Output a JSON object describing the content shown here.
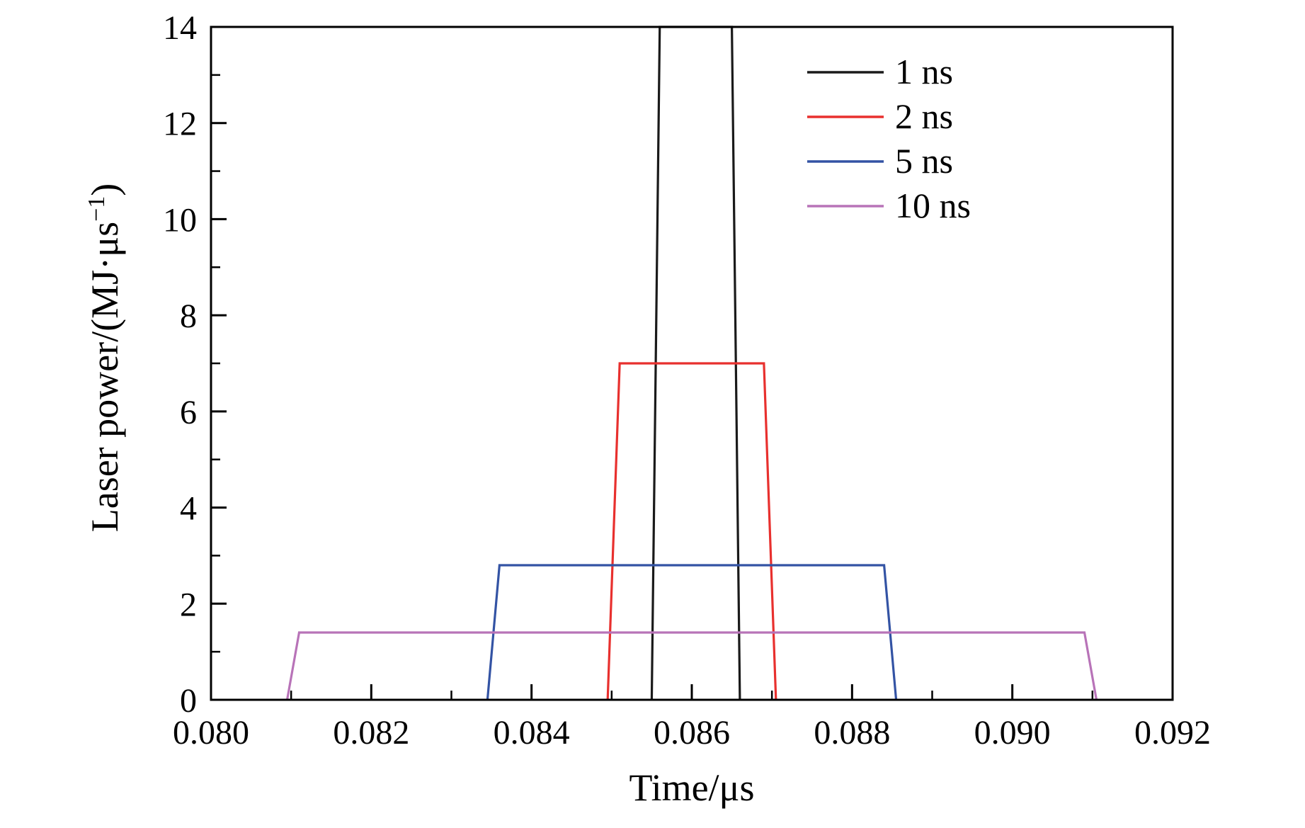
{
  "chart_data": {
    "type": "line",
    "title": "",
    "xlabel": "Time/μs",
    "ylabel": {
      "prefix": "Laser power/(MJ·μs",
      "sup": "−1",
      "suffix": ")"
    },
    "xlim": [
      0.08,
      0.092
    ],
    "ylim": [
      0,
      14
    ],
    "x_major_ticks": [
      0.08,
      0.082,
      0.084,
      0.086,
      0.088,
      0.09,
      0.092
    ],
    "x_tick_labels": [
      "0.080",
      "0.082",
      "0.084",
      "0.086",
      "0.088",
      "0.090",
      "0.092"
    ],
    "x_minor_ticks": [
      0.081,
      0.083,
      0.085,
      0.087,
      0.089,
      0.091
    ],
    "y_major_ticks": [
      0,
      2,
      4,
      6,
      8,
      10,
      12,
      14
    ],
    "y_tick_labels": [
      "0",
      "2",
      "4",
      "6",
      "8",
      "10",
      "12",
      "14"
    ],
    "y_minor_ticks": [
      1,
      3,
      5,
      7,
      9,
      11,
      13
    ],
    "grid": false,
    "legend_position": "top-right",
    "series": [
      {
        "name": "1 ns",
        "color": "#1a1a1a",
        "peak": 14,
        "points": [
          [
            0.0855,
            0
          ],
          [
            0.0856,
            14
          ],
          [
            0.0865,
            14
          ],
          [
            0.0866,
            0
          ]
        ]
      },
      {
        "name": "2 ns",
        "color": "#e8302e",
        "peak": 7,
        "points": [
          [
            0.08495,
            0
          ],
          [
            0.0851,
            7
          ],
          [
            0.0869,
            7
          ],
          [
            0.08705,
            0
          ]
        ]
      },
      {
        "name": "5 ns",
        "color": "#3353a4",
        "peak": 2.8,
        "points": [
          [
            0.08345,
            0
          ],
          [
            0.0836,
            2.8
          ],
          [
            0.0884,
            2.8
          ],
          [
            0.08855,
            0
          ]
        ]
      },
      {
        "name": "10 ns",
        "color": "#b873b8",
        "peak": 1.4,
        "points": [
          [
            0.08095,
            0
          ],
          [
            0.0811,
            1.4
          ],
          [
            0.0909,
            1.4
          ],
          [
            0.09105,
            0
          ]
        ]
      }
    ]
  }
}
